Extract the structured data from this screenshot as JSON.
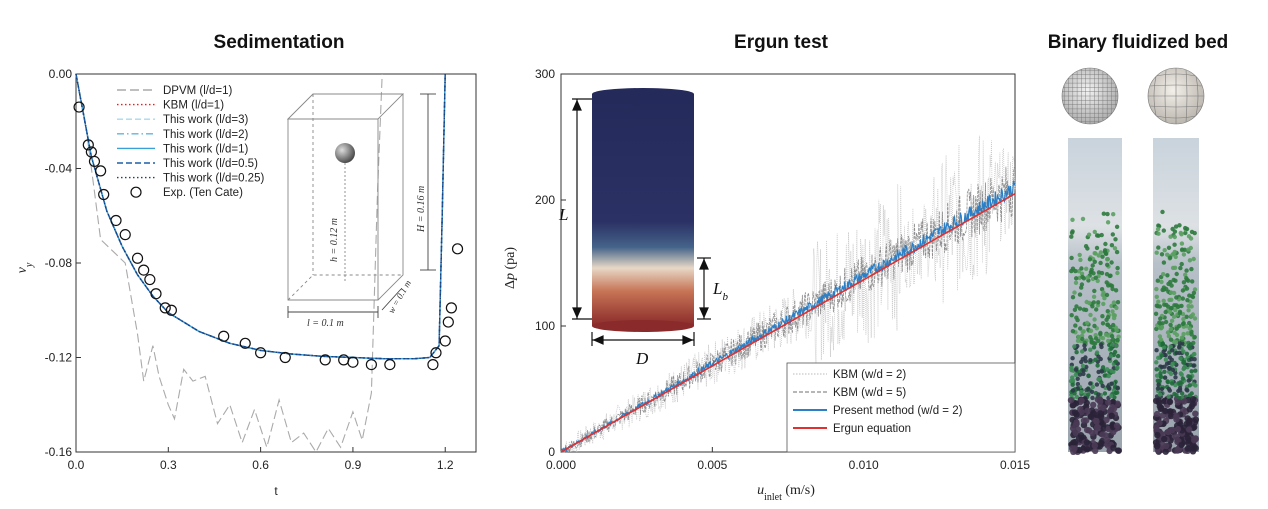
{
  "titles": {
    "sedimentation": "Sedimentation",
    "ergun": "Ergun test",
    "binary": "Binary fluidized bed"
  },
  "chart_data": [
    {
      "type": "line",
      "title": "Sedimentation",
      "xlabel": "t",
      "ylabel": "v_y",
      "xlim": [
        0,
        1.3
      ],
      "ylim": [
        -0.16,
        0.0
      ],
      "x_ticks": [
        "0.0",
        "0.3",
        "0.6",
        "0.9",
        "1.2"
      ],
      "y_ticks": [
        "0.00",
        "-0.04",
        "-0.08",
        "-0.12",
        "-0.16"
      ],
      "legend_position": "top-right",
      "series": [
        {
          "name": "DPVM (l/d=1)",
          "color": "#aaaaaa",
          "dash": "long-dash",
          "points": [
            [
              0,
              0
            ],
            [
              0.03,
              -0.02
            ],
            [
              0.06,
              -0.05
            ],
            [
              0.08,
              -0.07
            ],
            [
              0.12,
              -0.075
            ],
            [
              0.16,
              -0.08
            ],
            [
              0.2,
              -0.11
            ],
            [
              0.22,
              -0.13
            ],
            [
              0.25,
              -0.115
            ],
            [
              0.27,
              -0.128
            ],
            [
              0.3,
              -0.14
            ],
            [
              0.32,
              -0.146
            ],
            [
              0.35,
              -0.125
            ],
            [
              0.38,
              -0.13
            ],
            [
              0.42,
              -0.128
            ],
            [
              0.46,
              -0.148
            ],
            [
              0.5,
              -0.14
            ],
            [
              0.54,
              -0.156
            ],
            [
              0.58,
              -0.142
            ],
            [
              0.62,
              -0.158
            ],
            [
              0.66,
              -0.138
            ],
            [
              0.7,
              -0.156
            ],
            [
              0.74,
              -0.152
            ],
            [
              0.78,
              -0.16
            ],
            [
              0.82,
              -0.15
            ],
            [
              0.86,
              -0.158
            ],
            [
              0.9,
              -0.143
            ],
            [
              0.93,
              -0.155
            ],
            [
              0.96,
              -0.135
            ],
            [
              0.98,
              -0.05
            ],
            [
              0.995,
              0.0
            ]
          ]
        },
        {
          "name": "KBM (l/d=1)",
          "color": "#e02020",
          "dash": "dot",
          "points": [
            [
              0,
              0
            ],
            [
              0.05,
              -0.035
            ],
            [
              0.1,
              -0.058
            ],
            [
              0.15,
              -0.073
            ],
            [
              0.2,
              -0.085
            ],
            [
              0.25,
              -0.094
            ],
            [
              0.3,
              -0.101
            ],
            [
              0.4,
              -0.109
            ],
            [
              0.5,
              -0.114
            ],
            [
              0.6,
              -0.117
            ],
            [
              0.7,
              -0.1185
            ],
            [
              0.8,
              -0.1195
            ],
            [
              0.9,
              -0.12
            ],
            [
              1.0,
              -0.1205
            ],
            [
              1.1,
              -0.1205
            ],
            [
              1.15,
              -0.12
            ],
            [
              1.18,
              -0.115
            ],
            [
              1.19,
              -0.06
            ],
            [
              1.2,
              0.0
            ]
          ]
        },
        {
          "name": "This work (l/d=3)",
          "color": "#a9d8ec",
          "dash": "dash",
          "points": [
            [
              0,
              0
            ],
            [
              0.05,
              -0.035
            ],
            [
              0.1,
              -0.058
            ],
            [
              0.15,
              -0.073
            ],
            [
              0.2,
              -0.085
            ],
            [
              0.25,
              -0.094
            ],
            [
              0.3,
              -0.101
            ],
            [
              0.4,
              -0.109
            ],
            [
              0.5,
              -0.114
            ],
            [
              0.6,
              -0.117
            ],
            [
              0.7,
              -0.1185
            ],
            [
              0.8,
              -0.1195
            ],
            [
              0.9,
              -0.12
            ],
            [
              1.0,
              -0.1205
            ],
            [
              1.1,
              -0.1205
            ],
            [
              1.15,
              -0.12
            ],
            [
              1.18,
              -0.115
            ],
            [
              1.19,
              -0.06
            ],
            [
              1.2,
              0.0
            ]
          ]
        },
        {
          "name": "This work (l/d=2)",
          "color": "#5fb6dd",
          "dash": "dash-dot",
          "points": [
            [
              0,
              0
            ],
            [
              0.05,
              -0.035
            ],
            [
              0.1,
              -0.058
            ],
            [
              0.15,
              -0.073
            ],
            [
              0.2,
              -0.085
            ],
            [
              0.25,
              -0.094
            ],
            [
              0.3,
              -0.101
            ],
            [
              0.4,
              -0.109
            ],
            [
              0.5,
              -0.114
            ],
            [
              0.6,
              -0.117
            ],
            [
              0.7,
              -0.1185
            ],
            [
              0.8,
              -0.1195
            ],
            [
              0.9,
              -0.12
            ],
            [
              1.0,
              -0.1205
            ],
            [
              1.1,
              -0.1205
            ],
            [
              1.15,
              -0.12
            ],
            [
              1.18,
              -0.115
            ],
            [
              1.19,
              -0.06
            ],
            [
              1.2,
              0.0
            ]
          ]
        },
        {
          "name": "This work (l/d=1)",
          "color": "#3a9fd6",
          "dash": "solid",
          "points": [
            [
              0,
              0
            ],
            [
              0.05,
              -0.035
            ],
            [
              0.1,
              -0.058
            ],
            [
              0.15,
              -0.073
            ],
            [
              0.2,
              -0.085
            ],
            [
              0.25,
              -0.094
            ],
            [
              0.3,
              -0.101
            ],
            [
              0.4,
              -0.109
            ],
            [
              0.5,
              -0.114
            ],
            [
              0.6,
              -0.117
            ],
            [
              0.7,
              -0.1185
            ],
            [
              0.8,
              -0.1195
            ],
            [
              0.9,
              -0.12
            ],
            [
              1.0,
              -0.1205
            ],
            [
              1.1,
              -0.1205
            ],
            [
              1.15,
              -0.12
            ],
            [
              1.18,
              -0.115
            ],
            [
              1.19,
              -0.06
            ],
            [
              1.2,
              0.0
            ]
          ]
        },
        {
          "name": "This work (l/d=0.5)",
          "color": "#1f5fa8",
          "dash": "dash",
          "points": [
            [
              0,
              0
            ],
            [
              0.05,
              -0.035
            ],
            [
              0.1,
              -0.058
            ],
            [
              0.15,
              -0.073
            ],
            [
              0.2,
              -0.085
            ],
            [
              0.25,
              -0.094
            ],
            [
              0.3,
              -0.101
            ],
            [
              0.4,
              -0.109
            ],
            [
              0.5,
              -0.114
            ],
            [
              0.6,
              -0.117
            ],
            [
              0.7,
              -0.1185
            ],
            [
              0.8,
              -0.1195
            ],
            [
              0.9,
              -0.12
            ],
            [
              1.0,
              -0.1205
            ],
            [
              1.1,
              -0.1205
            ],
            [
              1.15,
              -0.12
            ],
            [
              1.18,
              -0.115
            ],
            [
              1.19,
              -0.06
            ],
            [
              1.2,
              0.0
            ]
          ]
        },
        {
          "name": "This work (l/d=0.25)",
          "color": "#16407a",
          "dash": "dot",
          "points": [
            [
              0,
              0
            ],
            [
              0.05,
              -0.035
            ],
            [
              0.1,
              -0.058
            ],
            [
              0.15,
              -0.073
            ],
            [
              0.2,
              -0.085
            ],
            [
              0.25,
              -0.094
            ],
            [
              0.3,
              -0.101
            ],
            [
              0.4,
              -0.109
            ],
            [
              0.5,
              -0.114
            ],
            [
              0.6,
              -0.117
            ],
            [
              0.7,
              -0.1185
            ],
            [
              0.8,
              -0.1195
            ],
            [
              0.9,
              -0.12
            ],
            [
              1.0,
              -0.1205
            ],
            [
              1.1,
              -0.1205
            ],
            [
              1.15,
              -0.12
            ],
            [
              1.18,
              -0.115
            ],
            [
              1.19,
              -0.06
            ],
            [
              1.2,
              0.0
            ]
          ]
        }
      ],
      "markers": {
        "name": "Exp. (Ten Cate)",
        "points": [
          [
            0.01,
            -0.014
          ],
          [
            0.04,
            -0.03
          ],
          [
            0.05,
            -0.033
          ],
          [
            0.06,
            -0.037
          ],
          [
            0.08,
            -0.041
          ],
          [
            0.09,
            -0.051
          ],
          [
            0.13,
            -0.062
          ],
          [
            0.16,
            -0.068
          ],
          [
            0.2,
            -0.078
          ],
          [
            0.22,
            -0.083
          ],
          [
            0.24,
            -0.087
          ],
          [
            0.26,
            -0.093
          ],
          [
            0.29,
            -0.099
          ],
          [
            0.31,
            -0.1
          ],
          [
            0.48,
            -0.111
          ],
          [
            0.55,
            -0.114
          ],
          [
            0.6,
            -0.118
          ],
          [
            0.68,
            -0.12
          ],
          [
            0.81,
            -0.121
          ],
          [
            0.87,
            -0.121
          ],
          [
            0.9,
            -0.122
          ],
          [
            0.96,
            -0.123
          ],
          [
            1.02,
            -0.123
          ],
          [
            1.16,
            -0.123
          ],
          [
            1.17,
            -0.118
          ],
          [
            1.2,
            -0.113
          ],
          [
            1.21,
            -0.105
          ],
          [
            1.22,
            -0.099
          ],
          [
            1.24,
            -0.074
          ]
        ]
      },
      "inset_labels": {
        "h": "h = 0.12 m",
        "H": "H = 0.16 m",
        "l": "l = 0.1 m",
        "w": "w = 0.1 m"
      }
    },
    {
      "type": "line",
      "title": "Ergun test",
      "xlabel": "u_inlet (m/s)",
      "ylabel": "Δp (pa)",
      "xlim": [
        0,
        0.015
      ],
      "ylim": [
        0,
        300
      ],
      "x_ticks": [
        "0.000",
        "0.005",
        "0.010",
        "0.015"
      ],
      "y_ticks": [
        "0",
        "100",
        "200",
        "300"
      ],
      "legend_position": "bottom-right",
      "series": [
        {
          "name": "KBM (w/d = 2)",
          "color": "#c8c8c8",
          "style": "noisy-dotted",
          "x": [
            0,
            0.015
          ],
          "y": [
            0,
            210
          ],
          "noise": 30
        },
        {
          "name": "KBM (w/d = 5)",
          "color": "#8c8c8c",
          "style": "noisy-dashed",
          "x": [
            0,
            0.015
          ],
          "y": [
            0,
            210
          ],
          "noise": 18
        },
        {
          "name": "Present method (w/d = 2)",
          "color": "#2a7fc6",
          "style": "noisy-solid",
          "x": [
            0,
            0.015
          ],
          "y": [
            0,
            210
          ],
          "noise": 5
        },
        {
          "name": "Ergun equation",
          "color": "#e03030",
          "style": "solid",
          "x": [
            0,
            0.015
          ],
          "y": [
            0,
            205
          ]
        }
      ],
      "inset_labels": {
        "L": "L",
        "Lb": "L",
        "Lb_sub": "b",
        "D": "D"
      }
    }
  ]
}
